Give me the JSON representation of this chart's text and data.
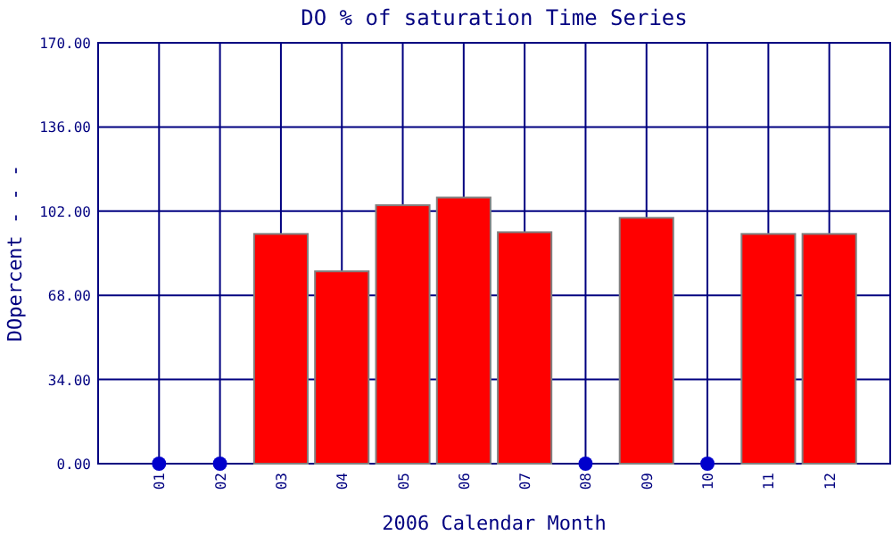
{
  "chart_data": {
    "type": "bar",
    "title": "DO % of saturation Time Series",
    "xlabel": "2006 Calendar Month",
    "ylabel": "DOpercent - - -",
    "categories": [
      "01",
      "02",
      "03",
      "04",
      "05",
      "06",
      "07",
      "08",
      "09",
      "10",
      "11",
      "12"
    ],
    "series": [
      {
        "color": "#ff0000",
        "values": [
          null,
          null,
          92.8,
          77.7,
          104.4,
          107.5,
          93.5,
          null,
          99.3,
          null,
          92.8,
          92.8
        ]
      },
      {
        "type": "scatter",
        "color": "#0000cc",
        "x": [
          "01",
          "02",
          "08",
          "10"
        ],
        "values": [
          0,
          0,
          0,
          0
        ]
      }
    ],
    "ylim": [
      0,
      170
    ],
    "yticks": [
      {
        "value": 0,
        "label": "0.00"
      },
      {
        "value": 34,
        "label": "34.00"
      },
      {
        "value": 68,
        "label": "68.00"
      },
      {
        "value": 102,
        "label": "102.00"
      },
      {
        "value": 136,
        "label": "136.00"
      },
      {
        "value": 170,
        "label": "170.00"
      }
    ],
    "grid": true,
    "marker": "circle"
  }
}
